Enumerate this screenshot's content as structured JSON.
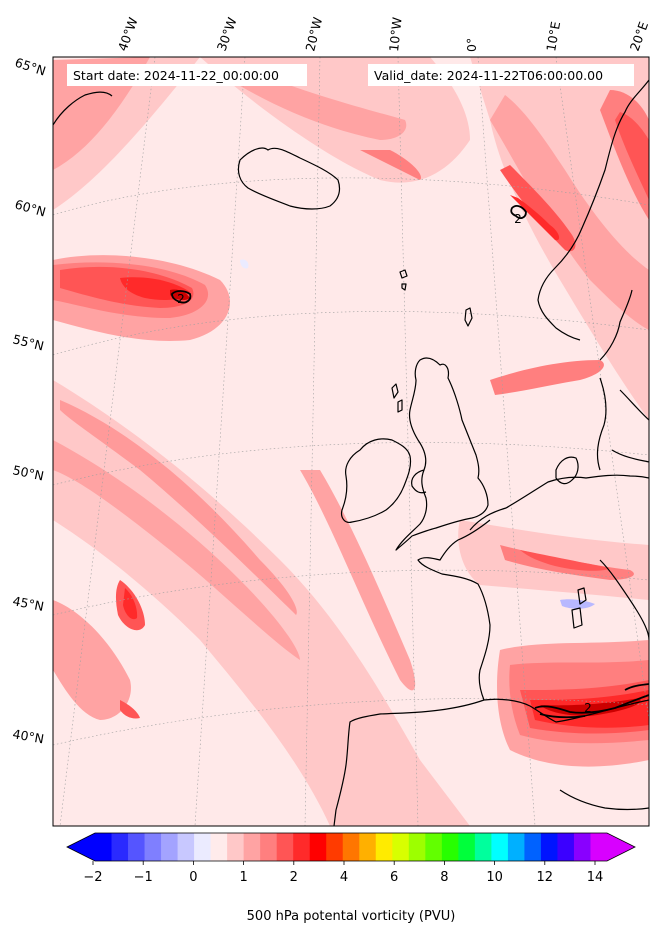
{
  "header": {
    "start_label": "Start date: 2024-11-22_00:00:00",
    "valid_label": "Valid_date: 2024-11-22T06:00:00.00"
  },
  "map": {
    "projection": "polar-stereographic",
    "longitude_labels": [
      "40°W",
      "30°W",
      "20°W",
      "10°W",
      "0°",
      "10°E",
      "20°E"
    ],
    "latitude_labels": [
      "65°N",
      "60°N",
      "55°N",
      "50°N",
      "45°N",
      "40°N"
    ],
    "contour_label_value": "2",
    "gridlines": "dotted",
    "background_color": "#ffe6e6"
  },
  "colorbar": {
    "label": "500 hPa potental vorticity (PVU)",
    "tick_labels": [
      "−2",
      "−1",
      "0",
      "1",
      "2",
      "4",
      "6",
      "8",
      "10",
      "12",
      "14"
    ],
    "extend": "both",
    "colors": [
      "#0000ff",
      "#2a2aff",
      "#5555ff",
      "#7f7fff",
      "#a3a3ff",
      "#c8c8ff",
      "#ebebff",
      "#ffebeb",
      "#ffc8c8",
      "#ffa3a3",
      "#ff7f7f",
      "#ff5555",
      "#ff2a2a",
      "#ff0000",
      "#ff3b00",
      "#ff7600",
      "#ffb000",
      "#ffeb00",
      "#d8ff00",
      "#9dff00",
      "#62ff00",
      "#27ff00",
      "#00ff3b",
      "#00ff9d",
      "#00ffff",
      "#00b0ff",
      "#0062ff",
      "#0014ff",
      "#3b00ff",
      "#8900ff",
      "#d800ff"
    ],
    "under_color": "#0000ff",
    "over_color": "#d800ff"
  }
}
